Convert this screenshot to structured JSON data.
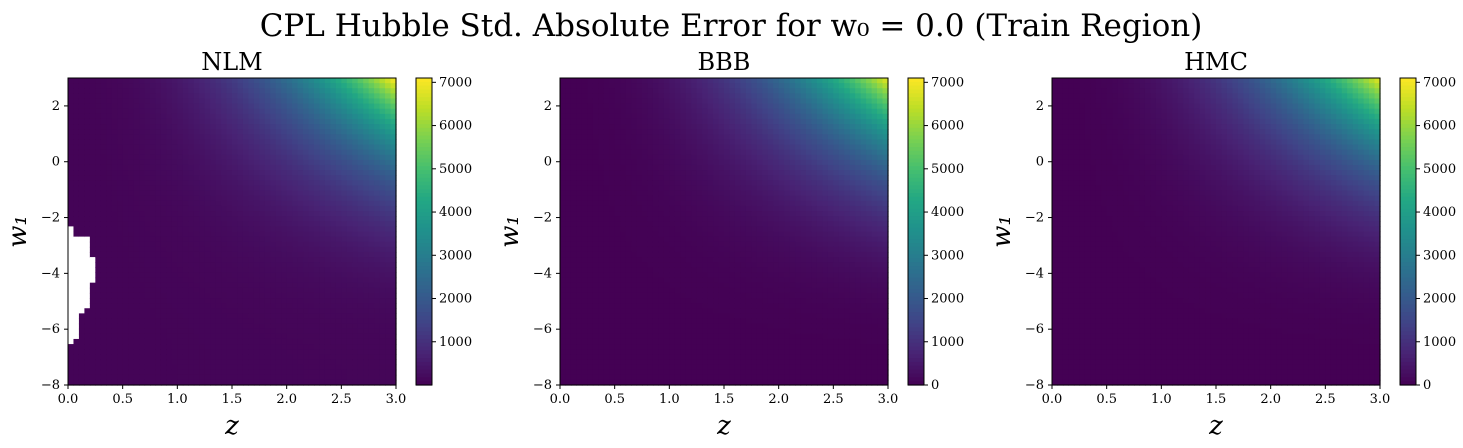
{
  "figure": {
    "title": "CPL Hubble Std. Absolute Error for w₀ = 0.0 (Train Region)"
  },
  "chart_data": [
    {
      "type": "heatmap",
      "title": "NLM",
      "xlabel": "z",
      "ylabel": "w₁",
      "xlim": [
        0.0,
        3.0
      ],
      "ylim": [
        -8,
        3
      ],
      "xticks": [
        "0.0",
        "0.5",
        "1.0",
        "1.5",
        "2.0",
        "2.5",
        "3.0"
      ],
      "yticks": [
        "−8",
        "−6",
        "−4",
        "−2",
        "0",
        "2"
      ],
      "colorbar": {
        "min": 0,
        "max": 7100,
        "ticks": [
          "1000",
          "2000",
          "3000",
          "4000",
          "5000",
          "6000",
          "7000"
        ]
      },
      "peak_value": 7100,
      "peak_location": {
        "z": 3.0,
        "w1": 3.0
      },
      "missing_region": "white NaN patch near z 0.0–0.25, w1 −6.6 to −2.3"
    },
    {
      "type": "heatmap",
      "title": "BBB",
      "xlabel": "z",
      "ylabel": "w₁",
      "xlim": [
        0.0,
        3.0
      ],
      "ylim": [
        -8,
        3
      ],
      "xticks": [
        "0.0",
        "0.5",
        "1.0",
        "1.5",
        "2.0",
        "2.5",
        "3.0"
      ],
      "yticks": [
        "−8",
        "−6",
        "−4",
        "−2",
        "0",
        "2"
      ],
      "colorbar": {
        "min": 0,
        "max": 7100,
        "ticks": [
          "0",
          "1000",
          "2000",
          "3000",
          "4000",
          "5000",
          "6000",
          "7000"
        ]
      },
      "peak_value": 6900,
      "peak_location": {
        "z": 3.0,
        "w1": 3.0
      }
    },
    {
      "type": "heatmap",
      "title": "HMC",
      "xlabel": "z",
      "ylabel": "w₁",
      "xlim": [
        0.0,
        3.0
      ],
      "ylim": [
        -8,
        3
      ],
      "xticks": [
        "0.0",
        "0.5",
        "1.0",
        "1.5",
        "2.0",
        "2.5",
        "3.0"
      ],
      "yticks": [
        "−8",
        "−6",
        "−4",
        "−2",
        "0",
        "2"
      ],
      "colorbar": {
        "min": 0,
        "max": 7100,
        "ticks": [
          "0",
          "1000",
          "2000",
          "3000",
          "4000",
          "5000",
          "6000",
          "7000"
        ]
      },
      "peak_value": 6900,
      "peak_location": {
        "z": 3.0,
        "w1": 3.0
      }
    }
  ]
}
